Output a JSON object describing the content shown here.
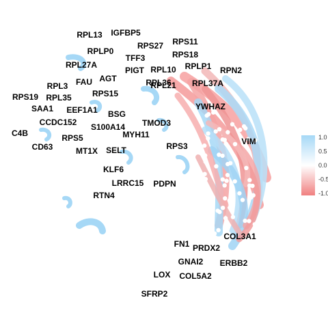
{
  "chart_data": {
    "type": "network",
    "title": "",
    "color_scale": {
      "min": -1.0,
      "max": 1.0,
      "ticks": [
        "1.0",
        "0.5",
        "0.0",
        "-0.5",
        "-1.0"
      ],
      "colors": {
        "negative": "#f08080",
        "zero": "#ffffff",
        "positive": "#a6d8f6"
      }
    },
    "nodes": [
      {
        "name": "RPL13"
      },
      {
        "name": "IGFBP5"
      },
      {
        "name": "RPS27"
      },
      {
        "name": "RPS11"
      },
      {
        "name": "RPLP0"
      },
      {
        "name": "RPS18"
      },
      {
        "name": "TFF3"
      },
      {
        "name": "RPL27A"
      },
      {
        "name": "PIGT"
      },
      {
        "name": "RPL10"
      },
      {
        "name": "RPLP1"
      },
      {
        "name": "RPN2"
      },
      {
        "name": "AGT"
      },
      {
        "name": "FAU"
      },
      {
        "name": "RPL3"
      },
      {
        "name": "RPL36"
      },
      {
        "name": "RPL21"
      },
      {
        "name": "RPL37A"
      },
      {
        "name": "RPS15"
      },
      {
        "name": "RPS19"
      },
      {
        "name": "RPL35"
      },
      {
        "name": "SAA1"
      },
      {
        "name": "EEF1A1"
      },
      {
        "name": "BSG"
      },
      {
        "name": "YWHAZ"
      },
      {
        "name": "CCDC152"
      },
      {
        "name": "S100A14"
      },
      {
        "name": "TMOD3"
      },
      {
        "name": "C4B"
      },
      {
        "name": "RPS5"
      },
      {
        "name": "MYH11"
      },
      {
        "name": "VIM"
      },
      {
        "name": "CD63"
      },
      {
        "name": "MT1X"
      },
      {
        "name": "SELT"
      },
      {
        "name": "RPS3"
      },
      {
        "name": "KLF6"
      },
      {
        "name": "LRRC15"
      },
      {
        "name": "PDPN"
      },
      {
        "name": "RTN4"
      },
      {
        "name": "COL3A1"
      },
      {
        "name": "FN1"
      },
      {
        "name": "PRDX2"
      },
      {
        "name": "GNAI2"
      },
      {
        "name": "ERBB2"
      },
      {
        "name": "LOX"
      },
      {
        "name": "COL5A2"
      },
      {
        "name": "SFRP2"
      }
    ]
  }
}
